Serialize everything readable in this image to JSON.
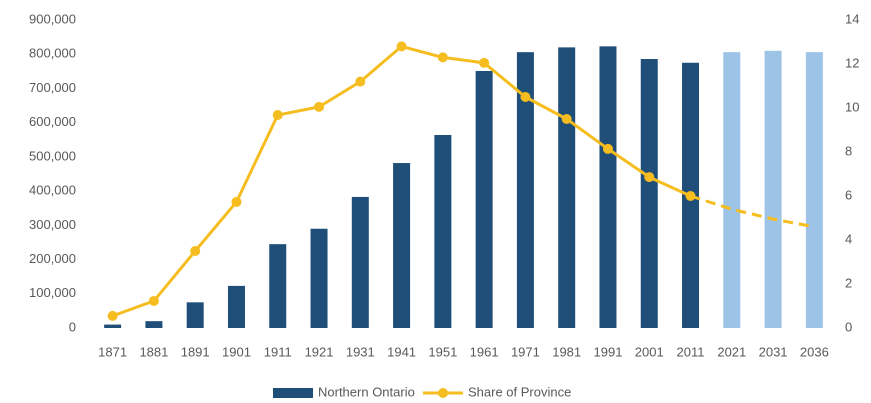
{
  "chart_data": {
    "type": "bar-line",
    "categories": [
      "1871",
      "1881",
      "1891",
      "1901",
      "1911",
      "1921",
      "1931",
      "1941",
      "1951",
      "1961",
      "1971",
      "1981",
      "1991",
      "2001",
      "2011",
      "2021",
      "2031",
      "2036"
    ],
    "series": [
      {
        "name": "Northern Ontario",
        "type": "bar",
        "color": "#1f4e79",
        "colors": [
          "#1f4e79",
          "#1f4e79",
          "#1f4e79",
          "#1f4e79",
          "#1f4e79",
          "#1f4e79",
          "#1f4e79",
          "#1f4e79",
          "#1f4e79",
          "#1f4e79",
          "#1f4e79",
          "#1f4e79",
          "#1f4e79",
          "#1f4e79",
          "#1f4e79",
          "#9dc3e6",
          "#9dc3e6",
          "#9dc3e6"
        ],
        "values": [
          10000,
          20000,
          75000,
          123000,
          245000,
          290000,
          383000,
          482000,
          564000,
          751000,
          806000,
          820000,
          823000,
          786000,
          775000,
          806000,
          810000,
          806000
        ]
      },
      {
        "name": "Share of Province",
        "type": "line",
        "axis": "y2",
        "color": "#f5bd1f",
        "projection_start": "2021",
        "values": [
          0.55,
          1.23,
          3.5,
          5.73,
          9.68,
          10.05,
          11.2,
          12.8,
          12.3,
          12.05,
          10.5,
          9.5,
          8.14,
          6.86,
          6.0,
          5.4,
          4.95,
          4.6
        ]
      }
    ],
    "ylim": [
      0,
      900000
    ],
    "yticks": [
      0,
      {
        "value": 100000,
        "label": "100,000"
      },
      {
        "value": 200000,
        "label": "200,000"
      },
      {
        "value": 300000,
        "label": "300,000"
      },
      {
        "value": 400000,
        "label": "400,000"
      },
      {
        "value": 500000,
        "label": "500,000"
      },
      {
        "value": 600000,
        "label": "600,000"
      },
      {
        "value": 700000,
        "label": "700,000"
      },
      {
        "value": 800000,
        "label": "800,000"
      },
      {
        "value": 900000,
        "label": "900,000"
      }
    ],
    "y2lim": [
      0,
      14
    ],
    "y2ticks": [
      0,
      2,
      4,
      6,
      8,
      10,
      12,
      14
    ],
    "grid": false,
    "legend": "bottom"
  }
}
